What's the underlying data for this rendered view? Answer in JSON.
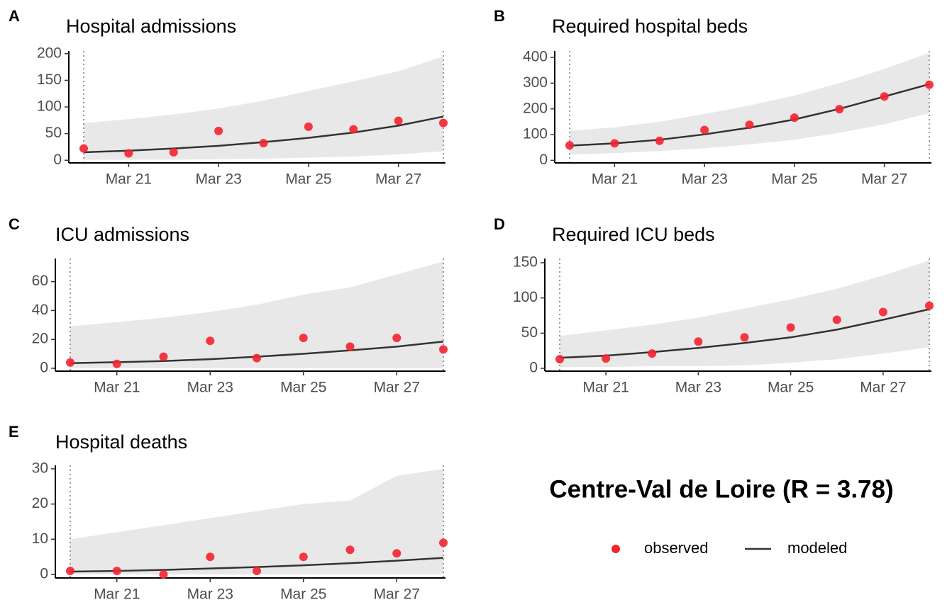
{
  "title": "Centre-Val de Loire (R = 3.78)",
  "legend": [
    {
      "name": "observed",
      "color": "#f5222d"
    },
    {
      "name": "modeled",
      "color": "#333333"
    }
  ],
  "band_color": "#e8e8e8",
  "chart_data": [
    {
      "type": "line",
      "label": "A",
      "title": "Hospital admissions",
      "x": [
        "Mar 20",
        "Mar 21",
        "Mar 22",
        "Mar 23",
        "Mar 24",
        "Mar 25",
        "Mar 26",
        "Mar 27",
        "Mar 28"
      ],
      "xticks": [
        "Mar 21",
        "Mar 23",
        "Mar 25",
        "Mar 27"
      ],
      "vlines": [
        "Mar 20",
        "Mar 28"
      ],
      "ylim": [
        -5,
        205
      ],
      "yticks": [
        0,
        50,
        100,
        150,
        200
      ],
      "observed": [
        22,
        13,
        15,
        55,
        32,
        63,
        58,
        74,
        70
      ],
      "modeled": [
        15,
        18,
        22,
        27,
        34,
        42,
        52,
        65,
        82
      ],
      "band_lower": [
        1,
        1,
        1,
        2,
        3,
        5,
        7,
        11,
        17
      ],
      "band_upper": [
        70,
        77,
        86,
        97,
        112,
        130,
        148,
        167,
        195
      ]
    },
    {
      "type": "line",
      "label": "B",
      "title": "Required hospital beds",
      "x": [
        "Mar 20",
        "Mar 21",
        "Mar 22",
        "Mar 23",
        "Mar 24",
        "Mar 25",
        "Mar 26",
        "Mar 27",
        "Mar 28"
      ],
      "xticks": [
        "Mar 21",
        "Mar 23",
        "Mar 25",
        "Mar 27"
      ],
      "vlines": [
        "Mar 20",
        "Mar 28"
      ],
      "ylim": [
        -10,
        425
      ],
      "yticks": [
        0,
        100,
        200,
        300,
        400
      ],
      "observed": [
        58,
        66,
        76,
        118,
        138,
        166,
        199,
        248,
        294
      ],
      "modeled": [
        57,
        66,
        80,
        101,
        127,
        159,
        200,
        248,
        296
      ],
      "band_lower": [
        22,
        28,
        36,
        47,
        62,
        80,
        107,
        140,
        183
      ],
      "band_upper": [
        115,
        128,
        150,
        180,
        213,
        252,
        300,
        355,
        418
      ]
    },
    {
      "type": "line",
      "label": "C",
      "title": "ICU admissions",
      "x": [
        "Mar 20",
        "Mar 21",
        "Mar 22",
        "Mar 23",
        "Mar 24",
        "Mar 25",
        "Mar 26",
        "Mar 27",
        "Mar 28"
      ],
      "xticks": [
        "Mar 21",
        "Mar 23",
        "Mar 25",
        "Mar 27"
      ],
      "vlines": [
        "Mar 20",
        "Mar 28"
      ],
      "ylim": [
        -2,
        76
      ],
      "yticks": [
        0,
        20,
        40,
        60
      ],
      "observed": [
        4,
        3,
        8,
        19,
        7,
        21,
        15,
        21,
        13
      ],
      "modeled": [
        3.5,
        4.2,
        5,
        6.3,
        8,
        10,
        12.4,
        15,
        18.5
      ],
      "band_lower": [
        0,
        0,
        0,
        0,
        0,
        0,
        0,
        0,
        0
      ],
      "band_upper": [
        29,
        32,
        35,
        39,
        44,
        51,
        56,
        65,
        74
      ]
    },
    {
      "type": "line",
      "label": "D",
      "title": "Required ICU beds",
      "x": [
        "Mar 20",
        "Mar 21",
        "Mar 22",
        "Mar 23",
        "Mar 24",
        "Mar 25",
        "Mar 26",
        "Mar 27",
        "Mar 28"
      ],
      "xticks": [
        "Mar 21",
        "Mar 23",
        "Mar 25",
        "Mar 27"
      ],
      "vlines": [
        "Mar 20",
        "Mar 28"
      ],
      "ylim": [
        -4,
        156
      ],
      "yticks": [
        0,
        50,
        100,
        150
      ],
      "observed": [
        13,
        14,
        21,
        38,
        44,
        58,
        69,
        80,
        89
      ],
      "modeled": [
        15,
        18,
        23,
        29,
        36,
        44,
        55,
        69,
        84
      ],
      "band_lower": [
        2,
        2,
        3,
        3,
        4,
        8,
        13,
        21,
        30
      ],
      "band_upper": [
        46,
        54,
        62,
        72,
        85,
        98,
        113,
        132,
        153
      ]
    },
    {
      "type": "line",
      "label": "E",
      "title": "Hospital deaths",
      "x": [
        "Mar 20",
        "Mar 21",
        "Mar 22",
        "Mar 23",
        "Mar 24",
        "Mar 25",
        "Mar 26",
        "Mar 27",
        "Mar 28"
      ],
      "xticks": [
        "Mar 21",
        "Mar 23",
        "Mar 25",
        "Mar 27"
      ],
      "vlines": [
        "Mar 20",
        "Mar 28"
      ],
      "ylim": [
        -1,
        31
      ],
      "yticks": [
        0,
        10,
        20,
        30
      ],
      "observed": [
        1,
        1,
        0,
        5,
        1,
        5,
        7,
        6,
        9
      ],
      "modeled": [
        0.8,
        1,
        1.3,
        1.7,
        2.1,
        2.6,
        3.2,
        3.9,
        4.7
      ],
      "band_lower": [
        0,
        0,
        0,
        0,
        0,
        0,
        0,
        0,
        0
      ],
      "band_upper": [
        10,
        12,
        14,
        16,
        18,
        20,
        21,
        28,
        30
      ]
    }
  ]
}
